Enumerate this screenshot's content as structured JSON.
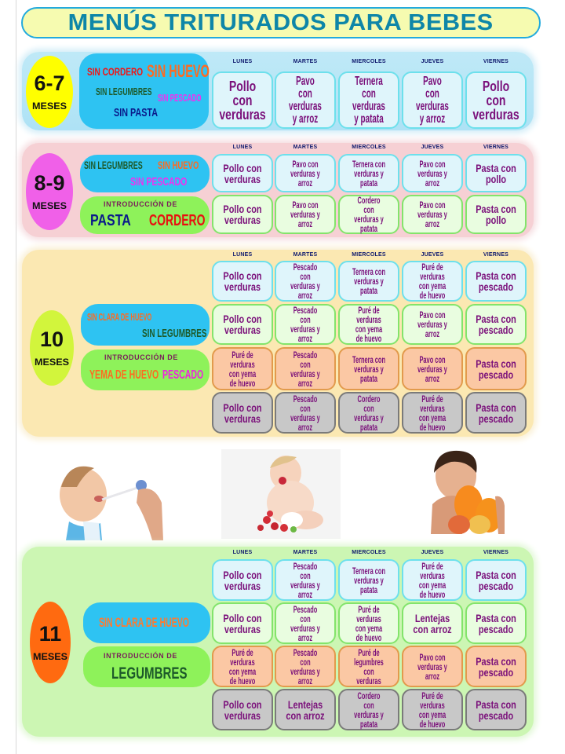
{
  "title": "MENÚS TRITURADOS PARA BEBES",
  "days": [
    "LUNES",
    "MARTES",
    "MIERCOLES",
    "JUEVES",
    "VIERNES"
  ],
  "colors": {
    "title_text": "#0e86a8",
    "title_bg": "#f6fbb0",
    "title_border": "#22aadd",
    "dish_text": "#7a0f7a",
    "day_text": "#0f1a6e"
  },
  "sections": [
    {
      "age_number": "6-7",
      "age_unit": "MESES",
      "age_color": "#ffff00",
      "restrictions": [
        "SIN CORDERO",
        "SIN HUEVO",
        "SIN LEGUMBRES",
        "SIN PESCADO",
        "SIN PASTA"
      ],
      "rows": [
        [
          "Pollo con verduras",
          "Pavo con verduras y arroz",
          "Ternera con verduras y patata",
          "Pavo con verduras y arroz",
          "Pollo con verduras"
        ]
      ]
    },
    {
      "age_number": "8-9",
      "age_unit": "MESES",
      "age_color": "#f060e8",
      "restrictions": [
        "SIN LEGUMBRES",
        "SIN HUEVO",
        "SIN PESCADO"
      ],
      "introduction_label": "INTRODUCCIÓN DE",
      "introductions": [
        "PASTA",
        "CORDERO"
      ],
      "rows": [
        [
          "Pollo con verduras",
          "Pavo con verduras y arroz",
          "Ternera con verduras y patata",
          "Pavo con verduras y arroz",
          "Pasta con pollo"
        ],
        [
          "Pollo con verduras",
          "Pavo con verduras y arroz",
          "Cordero con verduras y patata",
          "Pavo con verduras y arroz",
          "Pasta con pollo"
        ]
      ]
    },
    {
      "age_number": "10",
      "age_unit": "MESES",
      "age_color": "#d2f53c",
      "restrictions": [
        "SIN CLARA DE HUEVO",
        "SIN LEGUMBRES"
      ],
      "introduction_label": "INTRODUCCIÓN DE",
      "introductions": [
        "YEMA DE HUEVO",
        "PESCADO"
      ],
      "rows": [
        [
          "Pollo con verduras",
          "Pescado con verduras y arroz",
          "Ternera con verduras y patata",
          "Puré de verduras con yema de huevo",
          "Pasta con pescado"
        ],
        [
          "Pollo con verduras",
          "Pescado con verduras y arroz",
          "Puré de verduras con yema de huevo",
          "Pavo con verduras y arroz",
          "Pasta con pescado"
        ],
        [
          "Puré de verduras con yema de huevo",
          "Pescado con verduras y arroz",
          "Ternera con verduras y patata",
          "Pavo con verduras y arroz",
          "Pasta con pescado"
        ],
        [
          "Pollo con verduras",
          "Pescado con verduras y arroz",
          "Cordero con verduras y patata",
          "Puré de verduras con yema de huevo",
          "Pasta con pescado"
        ]
      ]
    },
    {
      "age_number": "11",
      "age_unit": "MESES",
      "age_color": "#ff6a10",
      "restrictions": [
        "SIN CLARA DE HUEVO"
      ],
      "introduction_label": "INTRODUCCIÓN DE",
      "introductions": [
        "LEGUMBRES"
      ],
      "rows": [
        [
          "Pollo con verduras",
          "Pescado con verduras y arroz",
          "Ternera con verduras y patata",
          "Puré de verduras con yema de huevo",
          "Pasta con pescado"
        ],
        [
          "Pollo con verduras",
          "Pescado con verduras y arroz",
          "Puré de verduras con yema de huevo",
          "Lentejas con arroz",
          "Pasta con pescado"
        ],
        [
          "Puré de verduras con yema de huevo",
          "Pescado con verduras y arroz",
          "Puré de legumbres con verduras",
          "Pavo con verduras y arroz",
          "Pasta con pescado"
        ],
        [
          "Pollo con verduras",
          "Lentejas con arroz",
          "Cordero con verduras y patata",
          "Puré de verduras con yema de huevo",
          "Pasta con pescado"
        ]
      ]
    }
  ],
  "photos": [
    {
      "name": "baby-spoon-feeding-photo",
      "description": "baby being fed with a spoon"
    },
    {
      "name": "baby-strawberries-photo",
      "description": "baby sitting eating strawberries"
    },
    {
      "name": "baby-fruit-photo",
      "description": "child holding oranges and fruit"
    }
  ]
}
